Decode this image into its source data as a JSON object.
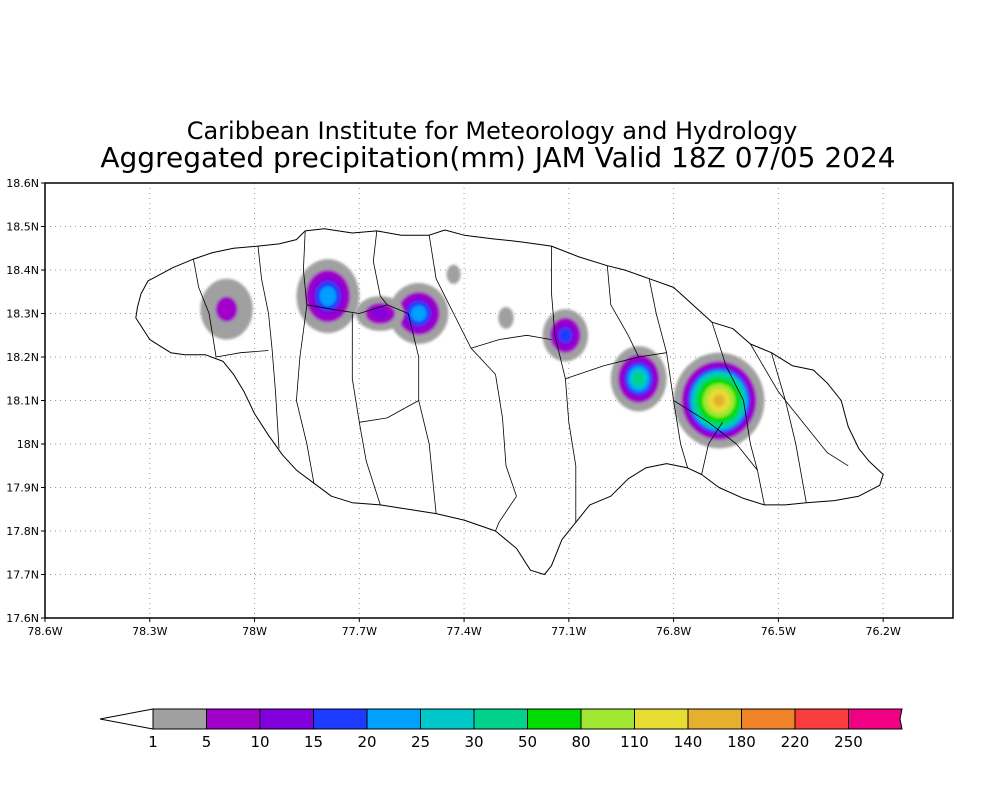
{
  "title": {
    "line1": "Caribbean Institute for Meteorology and Hydrology",
    "line2": "Aggregated precipitation(mm) JAM Valid 18Z 07/05 2024"
  },
  "map": {
    "lon_range": [
      -78.6,
      -76.0
    ],
    "lat_range": [
      17.6,
      18.6
    ],
    "x_ticks": [
      {
        "lon": -78.6,
        "label": "78.6W"
      },
      {
        "lon": -78.3,
        "label": "78.3W"
      },
      {
        "lon": -78.0,
        "label": "78W"
      },
      {
        "lon": -77.7,
        "label": "77.7W"
      },
      {
        "lon": -77.4,
        "label": "77.4W"
      },
      {
        "lon": -77.1,
        "label": "77.1W"
      },
      {
        "lon": -76.8,
        "label": "76.8W"
      },
      {
        "lon": -76.5,
        "label": "76.5W"
      },
      {
        "lon": -76.2,
        "label": "76.2W"
      }
    ],
    "y_ticks": [
      {
        "lat": 18.6,
        "label": "18.6N"
      },
      {
        "lat": 18.5,
        "label": "18.5N"
      },
      {
        "lat": 18.4,
        "label": "18.4N"
      },
      {
        "lat": 18.3,
        "label": "18.3N"
      },
      {
        "lat": 18.2,
        "label": "18.2N"
      },
      {
        "lat": 18.1,
        "label": "18.1N"
      },
      {
        "lat": 18.0,
        "label": "18N"
      },
      {
        "lat": 17.9,
        "label": "17.9N"
      },
      {
        "lat": 17.8,
        "label": "17.8N"
      },
      {
        "lat": 17.7,
        "label": "17.7N"
      },
      {
        "lat": 17.6,
        "label": "17.6N"
      }
    ],
    "grid": true,
    "coastline": [
      [
        -78.34,
        18.29
      ],
      [
        -78.335,
        18.315
      ],
      [
        -78.325,
        18.345
      ],
      [
        -78.305,
        18.375
      ],
      [
        -78.27,
        18.39
      ],
      [
        -78.235,
        18.405
      ],
      [
        -78.175,
        18.425
      ],
      [
        -78.12,
        18.44
      ],
      [
        -78.06,
        18.45
      ],
      [
        -77.99,
        18.455
      ],
      [
        -77.93,
        18.46
      ],
      [
        -77.88,
        18.47
      ],
      [
        -77.855,
        18.49
      ],
      [
        -77.8,
        18.495
      ],
      [
        -77.72,
        18.485
      ],
      [
        -77.65,
        18.49
      ],
      [
        -77.58,
        18.48
      ],
      [
        -77.5,
        18.48
      ],
      [
        -77.455,
        18.492
      ],
      [
        -77.4,
        18.48
      ],
      [
        -77.32,
        18.472
      ],
      [
        -77.24,
        18.465
      ],
      [
        -77.15,
        18.455
      ],
      [
        -77.07,
        18.43
      ],
      [
        -76.99,
        18.41
      ],
      [
        -76.94,
        18.4
      ],
      [
        -76.87,
        18.38
      ],
      [
        -76.8,
        18.36
      ],
      [
        -76.745,
        18.32
      ],
      [
        -76.69,
        18.28
      ],
      [
        -76.63,
        18.265
      ],
      [
        -76.58,
        18.23
      ],
      [
        -76.52,
        18.21
      ],
      [
        -76.46,
        18.18
      ],
      [
        -76.4,
        18.17
      ],
      [
        -76.36,
        18.14
      ],
      [
        -76.32,
        18.1
      ],
      [
        -76.3,
        18.04
      ],
      [
        -76.27,
        17.99
      ],
      [
        -76.24,
        17.96
      ],
      [
        -76.2,
        17.93
      ],
      [
        -76.21,
        17.905
      ],
      [
        -76.27,
        17.88
      ],
      [
        -76.34,
        17.87
      ],
      [
        -76.42,
        17.865
      ],
      [
        -76.48,
        17.86
      ],
      [
        -76.54,
        17.86
      ],
      [
        -76.6,
        17.875
      ],
      [
        -76.67,
        17.9
      ],
      [
        -76.72,
        17.93
      ],
      [
        -76.76,
        17.945
      ],
      [
        -76.82,
        17.955
      ],
      [
        -76.88,
        17.945
      ],
      [
        -76.93,
        17.92
      ],
      [
        -76.98,
        17.88
      ],
      [
        -77.04,
        17.86
      ],
      [
        -77.08,
        17.82
      ],
      [
        -77.12,
        17.78
      ],
      [
        -77.15,
        17.72
      ],
      [
        -77.17,
        17.7
      ],
      [
        -77.21,
        17.71
      ],
      [
        -77.25,
        17.76
      ],
      [
        -77.31,
        17.8
      ],
      [
        -77.4,
        17.825
      ],
      [
        -77.48,
        17.84
      ],
      [
        -77.56,
        17.85
      ],
      [
        -77.64,
        17.86
      ],
      [
        -77.72,
        17.865
      ],
      [
        -77.78,
        17.88
      ],
      [
        -77.83,
        17.91
      ],
      [
        -77.88,
        17.94
      ],
      [
        -77.92,
        17.975
      ],
      [
        -77.96,
        18.02
      ],
      [
        -78.0,
        18.07
      ],
      [
        -78.03,
        18.12
      ],
      [
        -78.06,
        18.16
      ],
      [
        -78.09,
        18.19
      ],
      [
        -78.14,
        18.205
      ],
      [
        -78.2,
        18.205
      ],
      [
        -78.24,
        18.21
      ],
      [
        -78.3,
        18.24
      ],
      [
        -78.34,
        18.29
      ]
    ],
    "parishes": [
      [
        [
          -78.175,
          18.425
        ],
        [
          -78.16,
          18.36
        ],
        [
          -78.13,
          18.3
        ],
        [
          -78.11,
          18.2
        ]
      ],
      [
        [
          -77.99,
          18.455
        ],
        [
          -77.98,
          18.38
        ],
        [
          -77.96,
          18.3
        ],
        [
          -77.95,
          18.22
        ],
        [
          -77.94,
          18.12
        ],
        [
          -77.93,
          17.99
        ]
      ],
      [
        [
          -78.11,
          18.2
        ],
        [
          -78.04,
          18.21
        ],
        [
          -77.96,
          18.215
        ]
      ],
      [
        [
          -77.855,
          18.49
        ],
        [
          -77.86,
          18.4
        ],
        [
          -77.85,
          18.32
        ],
        [
          -77.87,
          18.2
        ],
        [
          -77.88,
          18.1
        ],
        [
          -77.85,
          18.0
        ],
        [
          -77.83,
          17.91
        ]
      ],
      [
        [
          -77.85,
          18.32
        ],
        [
          -77.78,
          18.31
        ],
        [
          -77.7,
          18.3
        ],
        [
          -77.62,
          18.32
        ],
        [
          -77.56,
          18.3
        ]
      ],
      [
        [
          -77.65,
          18.49
        ],
        [
          -77.66,
          18.42
        ],
        [
          -77.64,
          18.34
        ],
        [
          -77.62,
          18.32
        ]
      ],
      [
        [
          -77.56,
          18.3
        ],
        [
          -77.53,
          18.2
        ],
        [
          -77.53,
          18.1
        ],
        [
          -77.5,
          18.0
        ],
        [
          -77.48,
          17.84
        ]
      ],
      [
        [
          -77.72,
          18.3
        ],
        [
          -77.72,
          18.15
        ],
        [
          -77.7,
          18.05
        ],
        [
          -77.68,
          17.96
        ],
        [
          -77.64,
          17.86
        ]
      ],
      [
        [
          -77.7,
          18.05
        ],
        [
          -77.62,
          18.06
        ],
        [
          -77.53,
          18.1
        ]
      ],
      [
        [
          -77.5,
          18.48
        ],
        [
          -77.48,
          18.38
        ],
        [
          -77.43,
          18.3
        ],
        [
          -77.38,
          18.22
        ],
        [
          -77.31,
          18.16
        ]
      ],
      [
        [
          -77.38,
          18.22
        ],
        [
          -77.3,
          18.24
        ],
        [
          -77.22,
          18.25
        ],
        [
          -77.15,
          18.24
        ]
      ],
      [
        [
          -77.31,
          18.16
        ],
        [
          -77.29,
          18.06
        ],
        [
          -77.28,
          17.95
        ],
        [
          -77.25,
          17.88
        ]
      ],
      [
        [
          -77.25,
          17.88
        ],
        [
          -77.3,
          17.82
        ],
        [
          -77.31,
          17.8
        ]
      ],
      [
        [
          -77.15,
          18.455
        ],
        [
          -77.15,
          18.35
        ],
        [
          -77.14,
          18.25
        ],
        [
          -77.11,
          18.15
        ],
        [
          -77.1,
          18.05
        ],
        [
          -77.08,
          17.95
        ],
        [
          -77.08,
          17.82
        ]
      ],
      [
        [
          -77.11,
          18.15
        ],
        [
          -77.0,
          18.18
        ],
        [
          -76.9,
          18.2
        ],
        [
          -76.82,
          18.21
        ]
      ],
      [
        [
          -76.99,
          18.41
        ],
        [
          -76.98,
          18.32
        ],
        [
          -76.93,
          18.25
        ],
        [
          -76.9,
          18.2
        ]
      ],
      [
        [
          -76.87,
          18.38
        ],
        [
          -76.85,
          18.3
        ],
        [
          -76.82,
          18.21
        ],
        [
          -76.8,
          18.1
        ],
        [
          -76.78,
          18.0
        ],
        [
          -76.76,
          17.945
        ]
      ],
      [
        [
          -76.8,
          18.1
        ],
        [
          -76.7,
          18.05
        ],
        [
          -76.62,
          18.0
        ],
        [
          -76.56,
          17.94
        ],
        [
          -76.54,
          17.86
        ]
      ],
      [
        [
          -76.69,
          18.28
        ],
        [
          -76.65,
          18.18
        ],
        [
          -76.6,
          18.1
        ],
        [
          -76.58,
          18.0
        ],
        [
          -76.56,
          17.94
        ]
      ],
      [
        [
          -76.58,
          18.23
        ],
        [
          -76.5,
          18.12
        ],
        [
          -76.43,
          18.05
        ],
        [
          -76.36,
          17.98
        ],
        [
          -76.3,
          17.95
        ]
      ],
      [
        [
          -76.52,
          18.21
        ],
        [
          -76.48,
          18.1
        ],
        [
          -76.45,
          18.0
        ],
        [
          -76.42,
          17.865
        ]
      ],
      [
        [
          -76.72,
          17.93
        ],
        [
          -76.7,
          18.0
        ],
        [
          -76.66,
          18.05
        ]
      ]
    ]
  },
  "precip_cells": [
    {
      "lon": -78.08,
      "lat": 18.31,
      "rx": 0.075,
      "ry": 0.07,
      "peak_mm": 6
    },
    {
      "lon": -77.79,
      "lat": 18.34,
      "rx": 0.09,
      "ry": 0.085,
      "peak_mm": 24
    },
    {
      "lon": -77.53,
      "lat": 18.3,
      "rx": 0.085,
      "ry": 0.07,
      "peak_mm": 24
    },
    {
      "lon": -77.64,
      "lat": 18.3,
      "rx": 0.07,
      "ry": 0.04,
      "peak_mm": 12
    },
    {
      "lon": -77.43,
      "lat": 18.39,
      "rx": 0.02,
      "ry": 0.022,
      "peak_mm": 2
    },
    {
      "lon": -77.28,
      "lat": 18.29,
      "rx": 0.022,
      "ry": 0.025,
      "peak_mm": 2
    },
    {
      "lon": -77.11,
      "lat": 18.25,
      "rx": 0.065,
      "ry": 0.06,
      "peak_mm": 18
    },
    {
      "lon": -76.9,
      "lat": 18.15,
      "rx": 0.08,
      "ry": 0.075,
      "peak_mm": 34
    },
    {
      "lon": -76.67,
      "lat": 18.1,
      "rx": 0.13,
      "ry": 0.11,
      "peak_mm": 150
    }
  ],
  "colorbar": {
    "colors": [
      "#a0a0a0",
      "#a000c8",
      "#8200dc",
      "#1e3cff",
      "#00a0ff",
      "#00c8c8",
      "#00d28c",
      "#00dc00",
      "#a0e632",
      "#e6dc32",
      "#e6af2d",
      "#f08228",
      "#fa3c3c",
      "#f00082"
    ],
    "under_color": "#ffffff",
    "labels": [
      "1",
      "5",
      "10",
      "15",
      "20",
      "25",
      "30",
      "50",
      "80",
      "110",
      "140",
      "180",
      "220",
      "250"
    ]
  }
}
